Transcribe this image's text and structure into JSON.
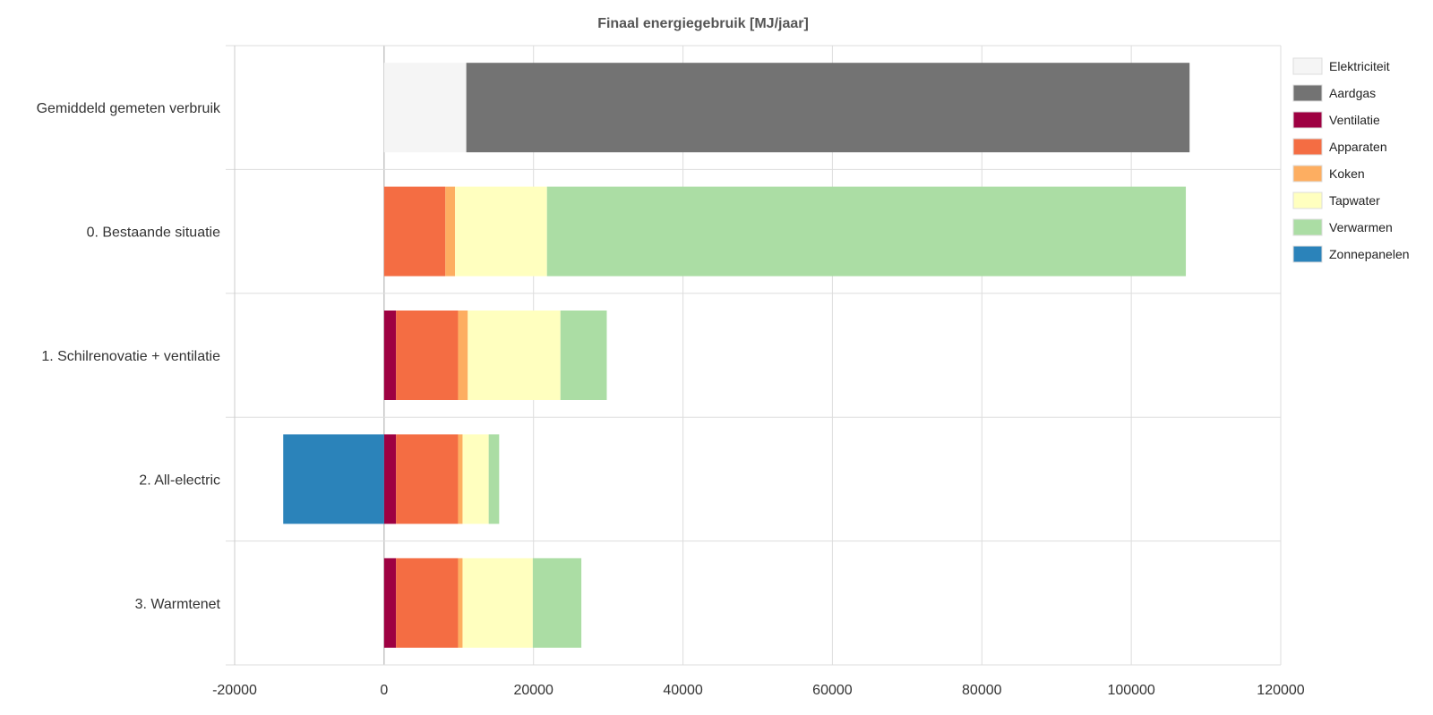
{
  "chart_data": {
    "type": "bar",
    "orientation": "horizontal",
    "stacked": true,
    "title": "Finaal energiegebruik [MJ/jaar]",
    "xlabel": "",
    "ylabel": "",
    "xlim": [
      -20000,
      120000
    ],
    "x_ticks": [
      -20000,
      0,
      20000,
      40000,
      60000,
      80000,
      100000,
      120000
    ],
    "tick_labels": [
      "-20000",
      "0",
      "20000",
      "40000",
      "60000",
      "80000",
      "100000",
      "120000"
    ],
    "grid": true,
    "legend_position": "right",
    "categories": [
      "Gemiddeld gemeten  verbruik",
      "0. Bestaande  situatie",
      "1. Schilrenovatie +  ventilatie",
      "2. All-electric",
      "3. Warmtenet"
    ],
    "series": [
      {
        "name": "Elektriciteit",
        "color": "#f5f5f5",
        "values": [
          11000,
          0,
          0,
          0,
          0
        ]
      },
      {
        "name": "Aardgas",
        "color": "#737373",
        "values": [
          96800,
          0,
          0,
          0,
          0
        ]
      },
      {
        "name": "Ventilatie",
        "color": "#9e0142",
        "values": [
          0,
          0,
          1600,
          1600,
          1600
        ]
      },
      {
        "name": "Apparaten",
        "color": "#f46d43",
        "values": [
          0,
          8200,
          8300,
          8300,
          8300
        ]
      },
      {
        "name": "Koken",
        "color": "#fdae61",
        "values": [
          0,
          1300,
          1300,
          600,
          600
        ]
      },
      {
        "name": "Tapwater",
        "color": "#ffffbf",
        "values": [
          0,
          12300,
          12400,
          3500,
          9400
        ]
      },
      {
        "name": "Verwarmen",
        "color": "#abdda4",
        "values": [
          0,
          85500,
          6200,
          1400,
          6500
        ]
      },
      {
        "name": "Zonnepanelen",
        "color": "#2b83ba",
        "values": [
          0,
          0,
          0,
          -13500,
          0
        ]
      }
    ]
  }
}
